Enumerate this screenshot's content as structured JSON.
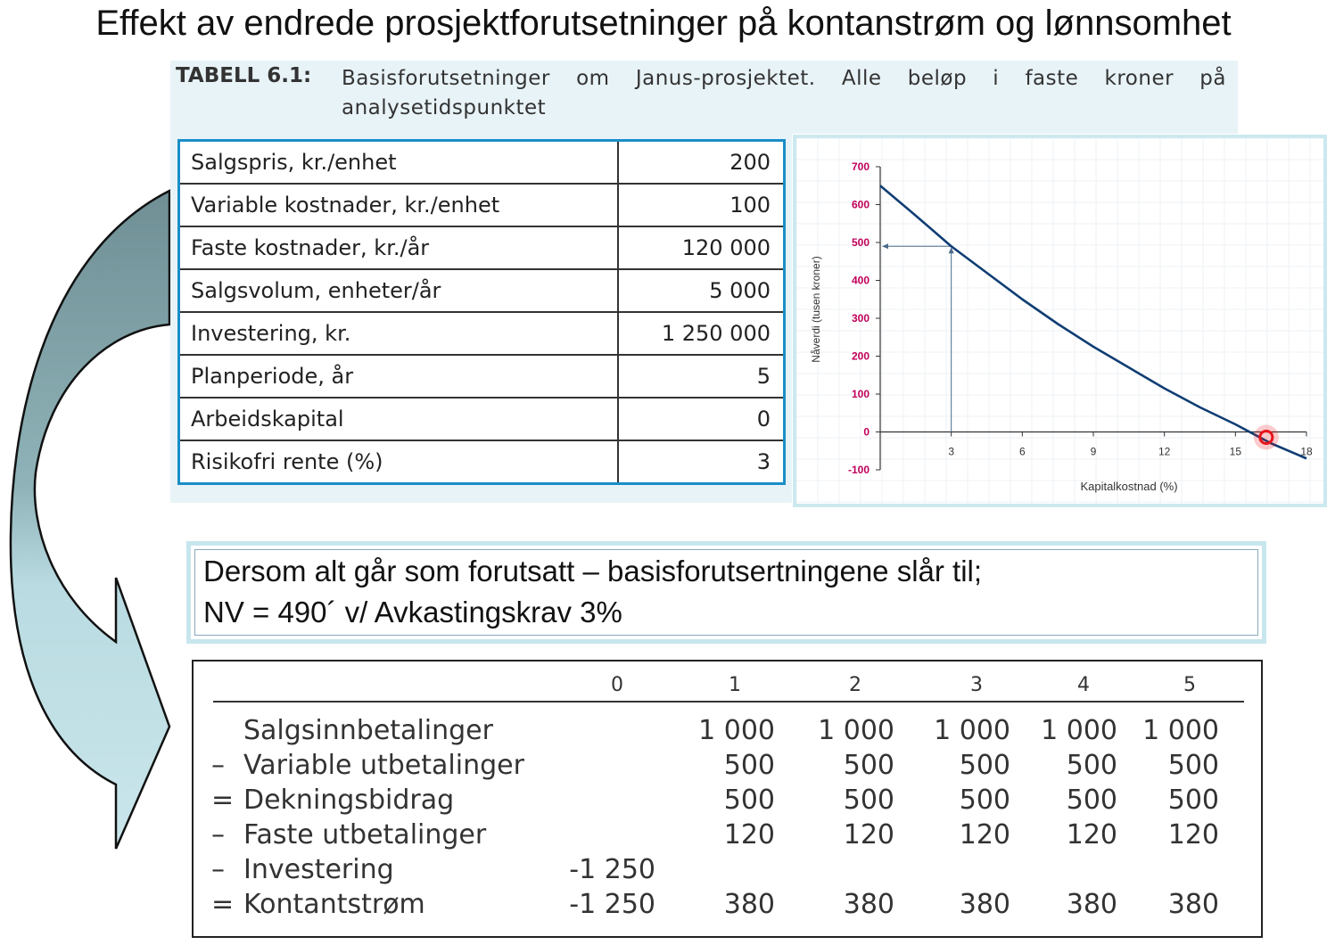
{
  "slide": {
    "title": "Effekt av endrede prosjektforutsetninger på kontanstrøm og lønnsomhet"
  },
  "table61": {
    "label": "TABELL 6.1:",
    "caption": "Basisforutsetninger om Janus-prosjektet. Alle beløp i faste kroner på analysetidspunktet",
    "rows": [
      {
        "label": "Salgspris, kr./enhet",
        "value": "200"
      },
      {
        "label": "Variable kostnader, kr./enhet",
        "value": "100"
      },
      {
        "label": "Faste kostnader, kr./år",
        "value": "120 000"
      },
      {
        "label": "Salgsvolum, enheter/år",
        "value": "5 000"
      },
      {
        "label": "Investering, kr.",
        "value": "1 250 000"
      },
      {
        "label": "Planperiode, år",
        "value": "5"
      },
      {
        "label": "Arbeidskapital",
        "value": "0"
      },
      {
        "label": "Risikofri rente (%)",
        "value": "3"
      }
    ]
  },
  "note": {
    "line1": "Dersom alt går som forutsatt – basisforutsertningene slår til;",
    "line2": "NV = 490´ v/ Avkastingskrav 3%"
  },
  "cashflow": {
    "periods": [
      "0",
      "1",
      "2",
      "3",
      "4",
      "5"
    ],
    "rows": [
      {
        "sign": "",
        "label": "Salgsinnbetalinger",
        "values": [
          "",
          "1 000",
          "1 000",
          "1 000",
          "1 000",
          "1 000"
        ]
      },
      {
        "sign": "–",
        "label": "Variable utbetalinger",
        "values": [
          "",
          "500",
          "500",
          "500",
          "500",
          "500"
        ]
      },
      {
        "sign": "=",
        "label": "Dekningsbidrag",
        "values": [
          "",
          "500",
          "500",
          "500",
          "500",
          "500"
        ]
      },
      {
        "sign": "–",
        "label": "Faste utbetalinger",
        "values": [
          "",
          "120",
          "120",
          "120",
          "120",
          "120"
        ]
      },
      {
        "sign": "–",
        "label": "Investering",
        "values": [
          "-1 250",
          "",
          "",
          "",
          "",
          ""
        ]
      },
      {
        "sign": "=",
        "label": "Kontantstrøm",
        "values": [
          "-1 250",
          "380",
          "380",
          "380",
          "380",
          "380"
        ]
      }
    ]
  },
  "chart_data": {
    "type": "line",
    "xlabel": "Kapitalkostnad (%)",
    "ylabel": "Nåverdi (tusen kroner)",
    "xlim": [
      0,
      18
    ],
    "ylim": [
      -100,
      700
    ],
    "xticks": [
      3,
      6,
      9,
      12,
      15,
      18
    ],
    "yticks": [
      -100,
      0,
      100,
      200,
      300,
      400,
      500,
      600,
      700
    ],
    "tick_color": "#c0005a",
    "line_color": "#0f3d73",
    "grid": true,
    "series": [
      {
        "x": [
          0,
          1.5,
          3,
          4.5,
          6,
          7.5,
          9,
          10.5,
          12,
          13.5,
          15,
          16.5,
          18
        ],
        "values": [
          650,
          571,
          490,
          420,
          350,
          285,
          225,
          170,
          115,
          65,
          20,
          -30,
          -70
        ]
      }
    ],
    "annotations": [
      {
        "type": "guide",
        "x": 3,
        "y": 490
      },
      {
        "type": "marker",
        "x": 16.3,
        "y": 0,
        "color": "#e8141c"
      }
    ]
  }
}
